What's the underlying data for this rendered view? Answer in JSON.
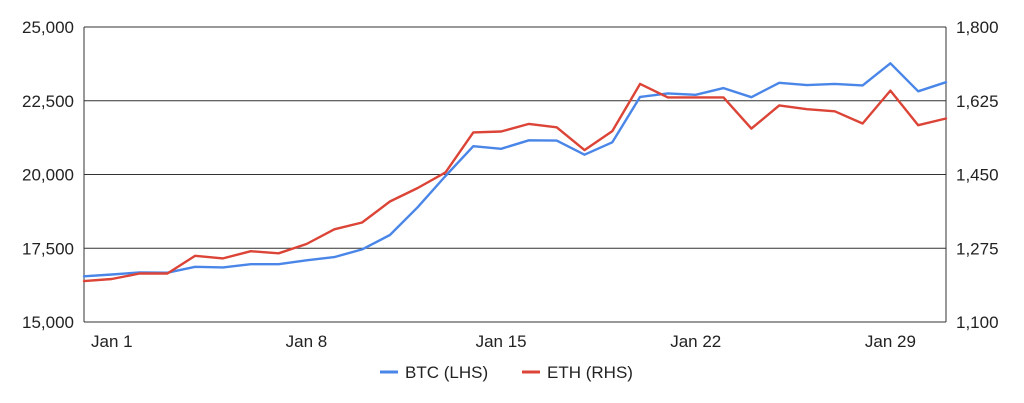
{
  "chart_data": {
    "type": "line",
    "title": "",
    "x_tick_labels": [
      "Jan 1",
      "Jan 8",
      "Jan 15",
      "Jan 22",
      "Jan 29"
    ],
    "x_tick_days": [
      1,
      8,
      15,
      22,
      29
    ],
    "xlim": [
      0,
      31
    ],
    "y_left": {
      "range": [
        15000,
        25000
      ],
      "ticks": [
        15000,
        17500,
        20000,
        22500,
        25000
      ],
      "tick_labels": [
        "15,000",
        "17,500",
        "20,000",
        "22,500",
        "25,000"
      ]
    },
    "y_right": {
      "range": [
        1100,
        1800
      ],
      "ticks": [
        1100,
        1275,
        1450,
        1625,
        1800
      ],
      "tick_labels": [
        "1,100",
        "1,275",
        "1,450",
        "1,625",
        "1,800"
      ]
    },
    "grid": true,
    "legend_position": "bottom",
    "series": [
      {
        "name": "BTC (LHS)",
        "axis": "left",
        "color": "#4a86e8",
        "x": [
          0,
          1,
          2,
          3,
          4,
          5,
          6,
          7,
          8,
          9,
          10,
          11,
          12,
          13,
          14,
          15,
          16,
          17,
          18,
          19,
          20,
          21,
          22,
          23,
          24,
          25,
          26,
          27,
          28,
          29,
          30,
          31
        ],
        "values": [
          16550,
          16610,
          16680,
          16670,
          16870,
          16850,
          16960,
          16960,
          17090,
          17200,
          17460,
          17950,
          18890,
          19950,
          20960,
          20870,
          21160,
          21150,
          20670,
          21090,
          22630,
          22750,
          22700,
          22930,
          22620,
          23110,
          23030,
          23070,
          23020,
          23770,
          22820,
          23130
        ]
      },
      {
        "name": "ETH (RHS)",
        "axis": "right",
        "color": "#db4437",
        "x": [
          0,
          1,
          2,
          3,
          4,
          5,
          6,
          7,
          8,
          9,
          10,
          11,
          12,
          13,
          14,
          15,
          16,
          17,
          18,
          19,
          20,
          21,
          22,
          23,
          24,
          25,
          26,
          27,
          28,
          29,
          30,
          31
        ],
        "values": [
          1197,
          1202,
          1215,
          1215,
          1257,
          1251,
          1268,
          1263,
          1285,
          1320,
          1336,
          1386,
          1418,
          1455,
          1550,
          1552,
          1570,
          1562,
          1508,
          1553,
          1665,
          1633,
          1633,
          1633,
          1559,
          1614,
          1605,
          1600,
          1571,
          1649,
          1567,
          1583
        ]
      }
    ]
  }
}
